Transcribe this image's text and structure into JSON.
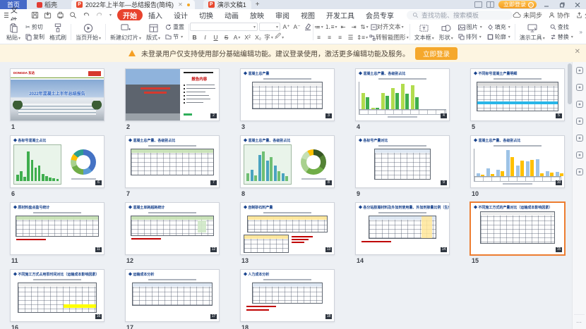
{
  "titlebar": {
    "home": "首页",
    "docer": "稻壳",
    "doc1": "2022年上半年—总结报告(简纯)",
    "doc2": "演示文稿1",
    "new_tab": "+",
    "login": "立即登录"
  },
  "menubar": {
    "file": "文件",
    "items": [
      "开始",
      "插入",
      "设计",
      "切换",
      "动画",
      "放映",
      "审阅",
      "视图",
      "开发工具",
      "会员专享"
    ],
    "active": "开始",
    "search_placeholder": "查找功能、搜索模板",
    "sync": "未同步",
    "collab": "协作",
    "share": "分享"
  },
  "ribbon": {
    "paste": "粘贴",
    "cut": "剪切",
    "copy": "复制",
    "format_painter": "格式刷",
    "play_current": "当页开始",
    "new_slide": "新建幻灯片",
    "layout": "版式",
    "reset": "重置",
    "section": "节",
    "bold": "B",
    "italic": "I",
    "underline": "U",
    "strike": "S",
    "align_text": "对齐文本",
    "to_smartart": "转智能图形",
    "textbox": "文本框",
    "shapes": "形状",
    "picture": "图片",
    "arrange": "排列",
    "fill": "填充",
    "outline": "轮廓",
    "present_tools": "演示工具",
    "find": "查找",
    "replace": "替换"
  },
  "notice": {
    "text": "未登录用户仅支持使用部分基础编辑功能。建议登录使用，激活更多编辑功能及服务。",
    "action": "立即登录",
    "close": "✕"
  },
  "colors": {
    "selection_orange": "#ED7D31",
    "active_menu_red": "#E8432E",
    "notice_bg": "#FDF5E1",
    "login_button": "#F5A82C",
    "table_green_header": "#C6E0B4",
    "table_yellow_header": "#FFE699",
    "cyan_highlight_row": "#29B6E8",
    "yellow_highlight": "#FFFF00"
  },
  "sidebar_icons": [
    "theme-panel-icon",
    "adjust-panel-icon",
    "beautify-icon",
    "layers-panel-icon",
    "image-tools-icon",
    "help-icon",
    "resources-icon"
  ],
  "slides": [
    {
      "num": "1",
      "kind": "cover",
      "brand": "DONGDA 东达",
      "title": "2022年混凝土上半年总结报告"
    },
    {
      "num": "2",
      "kind": "agenda",
      "heading": "报告内容",
      "bullet_count": 6
    },
    {
      "num": "3",
      "title": "混凝土总产量",
      "viz": {
        "type": "table",
        "w": 80,
        "h": 68,
        "header": "#efefef",
        "subtitle": true
      }
    },
    {
      "num": "4",
      "title": "混凝土总产量、各级别占比",
      "viz": {
        "type": "bars2",
        "subtitle": true,
        "axisTable": true,
        "c1": "#B2DC4E",
        "c2": "#3FAE4E",
        "s1": [
          58,
          6,
          60,
          76,
          93,
          86
        ],
        "s2": [
          44,
          5,
          48,
          60,
          57,
          44
        ]
      }
    },
    {
      "num": "5",
      "title": "不同标号混凝土产量明细",
      "viz": {
        "type": "table",
        "w": 94,
        "h": 74,
        "header": "#d9d9d9",
        "subtitle": true,
        "cyanRow": true
      }
    },
    {
      "num": "6",
      "title": "各标号混凝土占比",
      "viz": {
        "type": "barDonut",
        "panel": "#E9F4EA",
        "barColors": [
          "#3FAE4E"
        ],
        "bars": [
          18,
          30,
          12,
          88,
          62,
          40,
          46,
          20,
          14,
          10,
          8,
          6
        ],
        "donut": [
          [
            "#4472C4",
            38
          ],
          [
            "#5B9BD5",
            12
          ],
          [
            "#70AD47",
            18
          ],
          [
            "#A9D18E",
            10
          ],
          [
            "#FFC000",
            8
          ],
          [
            "#2E9E8F",
            14
          ]
        ]
      }
    },
    {
      "num": "7",
      "title": "混凝土总产量、各级别占比",
      "viz": {
        "type": "table",
        "w": 95,
        "h": 66,
        "header": "#C6E0B4",
        "subtitle": true
      }
    },
    {
      "num": "8",
      "title": "混凝土总产量、各级别占比",
      "viz": {
        "type": "barDonut",
        "panel": "#E9F4EA",
        "barColors": [
          "#6FBF73",
          "#4AA3C0"
        ],
        "bars": [
          22,
          34,
          16,
          78,
          88,
          60,
          70,
          46,
          30,
          22,
          14
        ],
        "donut": [
          [
            "#375623",
            15
          ],
          [
            "#548235",
            20
          ],
          [
            "#70AD47",
            25
          ],
          [
            "#A9D18E",
            20
          ],
          [
            "#C5E0B4",
            12
          ],
          [
            "#FFC000",
            8
          ]
        ]
      }
    },
    {
      "num": "9",
      "title": "各标号产量对比",
      "viz": {
        "type": "table",
        "w": 64,
        "h": 78,
        "header": "#DCE6F1",
        "subtitle": true
      }
    },
    {
      "num": "10",
      "title": "混凝土总产量、各级别占比",
      "viz": {
        "type": "bars2",
        "subtitle": true,
        "axisTable": true,
        "c1": "#9DC3E6",
        "c2": "#FFC000",
        "s1": [
          10,
          28,
          22,
          95,
          38,
          55,
          62,
          18,
          15,
          12
        ],
        "s2": [
          6,
          8,
          18,
          70,
          56,
          58,
          10,
          14,
          10,
          8
        ]
      }
    },
    {
      "num": "11",
      "title": "原材料盘点盈亏统计",
      "viz": {
        "type": "table",
        "w": 95,
        "h": 52,
        "header": "#C6E0B4",
        "subtitle": true,
        "notes": 1
      }
    },
    {
      "num": "12",
      "title": "混凝土单耗超耗统计",
      "viz": {
        "type": "table",
        "w": 95,
        "h": 50,
        "header": "#C6E0B4",
        "subtitle": true,
        "notes": 1,
        "greenCells": true
      }
    },
    {
      "num": "13",
      "title": "自制砂石料产量",
      "viz": {
        "type": "tables2",
        "header": "#FFE699",
        "subtitle": true
      }
    },
    {
      "num": "14",
      "title": "各分站胶凝材料及外加剂使用量、外加剂掺量比例（生产成本分析）",
      "viz": {
        "type": "table",
        "w": 78,
        "h": 58,
        "header": "#DCE6F1",
        "subtitle": true,
        "yellowCol": true,
        "notes": 1
      }
    },
    {
      "num": "15",
      "title": "不同施工方式的产量对比（运输成本影响因素）",
      "selected": true,
      "viz": {
        "type": "table",
        "w": 86,
        "h": 80,
        "header": "#efefef"
      }
    },
    {
      "num": "16",
      "title": "不同施工方式占用泵时间对比（运输成本影响因素）",
      "viz": {
        "type": "table",
        "w": 90,
        "h": 76,
        "header": "#efefef",
        "subtitle": true,
        "yellowRow": true
      }
    },
    {
      "num": "17",
      "title": "运输成本分析",
      "viz": {
        "type": "table",
        "w": 92,
        "h": 58,
        "header": "#DCE6F1",
        "subtitle": true
      }
    },
    {
      "num": "18",
      "title": "人力成本分析",
      "viz": {
        "type": "table",
        "w": 80,
        "h": 52,
        "header": "#DCE6F1",
        "subtitle": true,
        "notes": 2
      }
    }
  ]
}
